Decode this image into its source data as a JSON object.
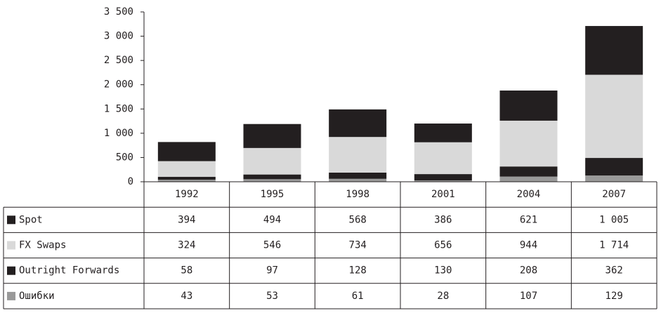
{
  "chart_data": {
    "type": "bar",
    "stacked": true,
    "categories": [
      "1992",
      "1995",
      "1998",
      "2001",
      "2004",
      "2007"
    ],
    "series": [
      {
        "name": "Spot",
        "color": "#231f20",
        "values": [
          394,
          494,
          568,
          386,
          621,
          1005
        ],
        "value_labels": [
          "394",
          "494",
          "568",
          "386",
          "621",
          "1 005"
        ]
      },
      {
        "name": "FX Swaps",
        "color": "#d9d9d9",
        "values": [
          324,
          546,
          734,
          656,
          944,
          1714
        ],
        "value_labels": [
          "324",
          "546",
          "734",
          "656",
          "944",
          "1 714"
        ]
      },
      {
        "name": "Outright Forwards",
        "color": "#231f20",
        "values": [
          58,
          97,
          128,
          130,
          208,
          362
        ]
      },
      {
        "name": "Ошибки",
        "color": "#999999",
        "values": [
          43,
          53,
          61,
          28,
          107,
          129
        ]
      }
    ],
    "ylim": [
      0,
      3500
    ],
    "yticks": [
      0,
      500,
      {
        "value": 1000,
        "label": "1 000"
      },
      {
        "value": 1500,
        "label": "1 500"
      },
      {
        "value": 2000,
        "label": "2 000"
      },
      {
        "value": 2500,
        "label": "2 500"
      },
      {
        "value": 3000,
        "label": "3 000"
      },
      {
        "value": 3500,
        "label": "3 500"
      }
    ]
  }
}
